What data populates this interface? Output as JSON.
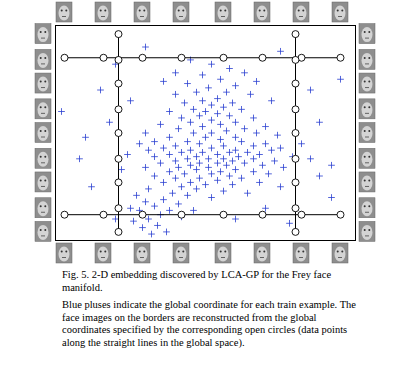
{
  "chart_data": {
    "type": "scatter",
    "title": "Fig. 5. 2-D embedding discovered by LCA-GP for the Frey face manifold.",
    "caption": "Blue pluses indicate the global coordinate for each train example. The face images on the borders are reconstructed from the global coordinates specified by the corresponding open circles (data points along the straight lines in the global space).",
    "xlim": [
      0,
      100
    ],
    "ylim": [
      0,
      100
    ],
    "xticks": [],
    "yticks": [],
    "tick_labels": false,
    "series": [
      {
        "type": "scatter",
        "marker": "plus",
        "color": "#2a3fd0",
        "points": [
          [
            45,
            84
          ],
          [
            52,
            82
          ],
          [
            58,
            80
          ],
          [
            40,
            78
          ],
          [
            63,
            78
          ],
          [
            49,
            77
          ],
          [
            55,
            75
          ],
          [
            36,
            74
          ],
          [
            67,
            74
          ],
          [
            44,
            73
          ],
          [
            60,
            72
          ],
          [
            51,
            71
          ],
          [
            47,
            69
          ],
          [
            57,
            69
          ],
          [
            40,
            68
          ],
          [
            65,
            68
          ],
          [
            54,
            66
          ],
          [
            49,
            65
          ],
          [
            43,
            64
          ],
          [
            59,
            64
          ],
          [
            52,
            63
          ],
          [
            56,
            62
          ],
          [
            46,
            61
          ],
          [
            62,
            61
          ],
          [
            38,
            60
          ],
          [
            50,
            60
          ],
          [
            54,
            59
          ],
          [
            48,
            58
          ],
          [
            58,
            58
          ],
          [
            42,
            57
          ],
          [
            66,
            57
          ],
          [
            52,
            56
          ],
          [
            45,
            55
          ],
          [
            60,
            55
          ],
          [
            55,
            54
          ],
          [
            35,
            54
          ],
          [
            70,
            53
          ],
          [
            49,
            53
          ],
          [
            63,
            52
          ],
          [
            41,
            52
          ],
          [
            57,
            51
          ],
          [
            52,
            50
          ],
          [
            46,
            50
          ],
          [
            67,
            50
          ],
          [
            30,
            50
          ],
          [
            74,
            49
          ],
          [
            60,
            48
          ],
          [
            38,
            48
          ],
          [
            50,
            48
          ],
          [
            55,
            47
          ],
          [
            33,
            46
          ],
          [
            44,
            46
          ],
          [
            62,
            46
          ],
          [
            70,
            45
          ],
          [
            28,
            45
          ],
          [
            48,
            45
          ],
          [
            56,
            44
          ],
          [
            40,
            44
          ],
          [
            66,
            44
          ],
          [
            75,
            43
          ],
          [
            36,
            43
          ],
          [
            52,
            43
          ],
          [
            60,
            42
          ],
          [
            45,
            42
          ],
          [
            31,
            42
          ],
          [
            72,
            42
          ],
          [
            58,
            41
          ],
          [
            49,
            41
          ],
          [
            42,
            41
          ],
          [
            64,
            41
          ],
          [
            54,
            40
          ],
          [
            38,
            40
          ],
          [
            68,
            40
          ],
          [
            47,
            39
          ],
          [
            61,
            39
          ],
          [
            33,
            39
          ],
          [
            79,
            39
          ],
          [
            56,
            38
          ],
          [
            44,
            38
          ],
          [
            51,
            38
          ],
          [
            66,
            38
          ],
          [
            40,
            37
          ],
          [
            59,
            37
          ],
          [
            73,
            37
          ],
          [
            48,
            36
          ],
          [
            54,
            36
          ],
          [
            35,
            36
          ],
          [
            63,
            36
          ],
          [
            45,
            35
          ],
          [
            57,
            35
          ],
          [
            69,
            35
          ],
          [
            41,
            34
          ],
          [
            51,
            34
          ],
          [
            76,
            34
          ],
          [
            30,
            34
          ],
          [
            60,
            33
          ],
          [
            47,
            33
          ],
          [
            55,
            32
          ],
          [
            38,
            32
          ],
          [
            66,
            32
          ],
          [
            43,
            31
          ],
          [
            52,
            31
          ],
          [
            71,
            31
          ],
          [
            33,
            30
          ],
          [
            58,
            30
          ],
          [
            48,
            29
          ],
          [
            62,
            29
          ],
          [
            40,
            29
          ],
          [
            54,
            28
          ],
          [
            45,
            27
          ],
          [
            68,
            27
          ],
          [
            36,
            27
          ],
          [
            50,
            26
          ],
          [
            59,
            26
          ],
          [
            42,
            25
          ],
          [
            75,
            25
          ],
          [
            47,
            24
          ],
          [
            31,
            24
          ],
          [
            56,
            23
          ],
          [
            39,
            22
          ],
          [
            64,
            22
          ],
          [
            44,
            21
          ],
          [
            52,
            20
          ],
          [
            82,
            45
          ],
          [
            85,
            38
          ],
          [
            88,
            30
          ],
          [
            24,
            40
          ],
          [
            22,
            33
          ],
          [
            92,
            35
          ],
          [
            36,
            19
          ],
          [
            30,
            18
          ],
          [
            41,
            17
          ],
          [
            33,
            16
          ],
          [
            38,
            14
          ],
          [
            28,
            14
          ],
          [
            35,
            12
          ],
          [
            31,
            10
          ],
          [
            42,
            11
          ],
          [
            26,
            9
          ],
          [
            34,
            7
          ],
          [
            29,
            6
          ],
          [
            37,
            4
          ],
          [
            32,
            3
          ],
          [
            25,
            15
          ],
          [
            46,
            14
          ],
          [
            27,
            21
          ],
          [
            2,
            60
          ],
          [
            10,
            48
          ],
          [
            15,
            70
          ],
          [
            20,
            82
          ],
          [
            30,
            90
          ],
          [
            75,
            88
          ],
          [
            85,
            70
          ],
          [
            95,
            75
          ],
          [
            88,
            55
          ],
          [
            12,
            25
          ],
          [
            18,
            55
          ],
          [
            80,
            60
          ],
          [
            92,
            20
          ],
          [
            20,
            10
          ],
          [
            70,
            15
          ],
          [
            60,
            10
          ],
          [
            78,
            8
          ],
          [
            25,
            65
          ],
          [
            72,
            65
          ],
          [
            8,
            38
          ]
        ]
      },
      {
        "type": "line",
        "marker": "circle",
        "color": "#000000",
        "points": [
          [
            3,
            85
          ],
          [
            16,
            85
          ],
          [
            29,
            85
          ],
          [
            42,
            85
          ],
          [
            56,
            85
          ],
          [
            69,
            85
          ],
          [
            82,
            85
          ],
          [
            95,
            85
          ]
        ]
      },
      {
        "type": "line",
        "marker": "circle",
        "color": "#000000",
        "points": [
          [
            3,
            12
          ],
          [
            16,
            12
          ],
          [
            29,
            12
          ],
          [
            42,
            12
          ],
          [
            56,
            12
          ],
          [
            69,
            12
          ],
          [
            82,
            12
          ],
          [
            95,
            12
          ]
        ]
      },
      {
        "type": "line",
        "marker": "circle",
        "color": "#000000",
        "points": [
          [
            21,
            4
          ],
          [
            21,
            15
          ],
          [
            21,
            27
          ],
          [
            21,
            38
          ],
          [
            21,
            50
          ],
          [
            21,
            61
          ],
          [
            21,
            73
          ],
          [
            21,
            84
          ],
          [
            21,
            96
          ]
        ]
      },
      {
        "type": "line",
        "marker": "circle",
        "color": "#000000",
        "points": [
          [
            80,
            4
          ],
          [
            80,
            15
          ],
          [
            80,
            27
          ],
          [
            80,
            38
          ],
          [
            80,
            50
          ],
          [
            80,
            61
          ],
          [
            80,
            73
          ],
          [
            80,
            84
          ],
          [
            80,
            96
          ]
        ]
      }
    ]
  }
}
